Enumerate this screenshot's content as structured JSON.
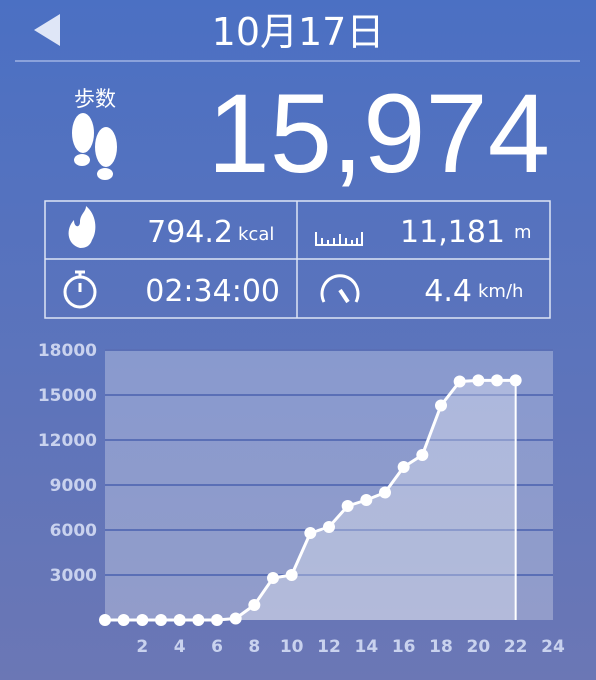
{
  "header": {
    "title": "10月17日"
  },
  "steps": {
    "label": "歩数",
    "value": "15,974"
  },
  "stats": {
    "calories": "794.2",
    "calories_unit": "kcal",
    "distance": "11,181",
    "distance_unit": "m",
    "time": "02:34:00",
    "speed": "4.4",
    "speed_unit": "km/h"
  },
  "chart_data": {
    "type": "area",
    "x": [
      0,
      1,
      2,
      3,
      4,
      5,
      6,
      7,
      8,
      9,
      10,
      11,
      12,
      13,
      14,
      15,
      16,
      17,
      18,
      19,
      20,
      21,
      22
    ],
    "values": [
      0,
      0,
      0,
      0,
      0,
      0,
      0,
      100,
      1000,
      2800,
      3000,
      5800,
      6200,
      7600,
      8000,
      8500,
      10200,
      11000,
      14300,
      15900,
      15974,
      15974,
      15974
    ],
    "color": "#ffffff",
    "xlim": [
      0,
      24
    ],
    "xticks": [
      2,
      4,
      6,
      8,
      10,
      12,
      14,
      16,
      18,
      20,
      22,
      24
    ],
    "ylim": [
      0,
      18000
    ],
    "yticks": [
      3000,
      6000,
      9000,
      12000,
      15000,
      18000
    ],
    "grid": true
  }
}
